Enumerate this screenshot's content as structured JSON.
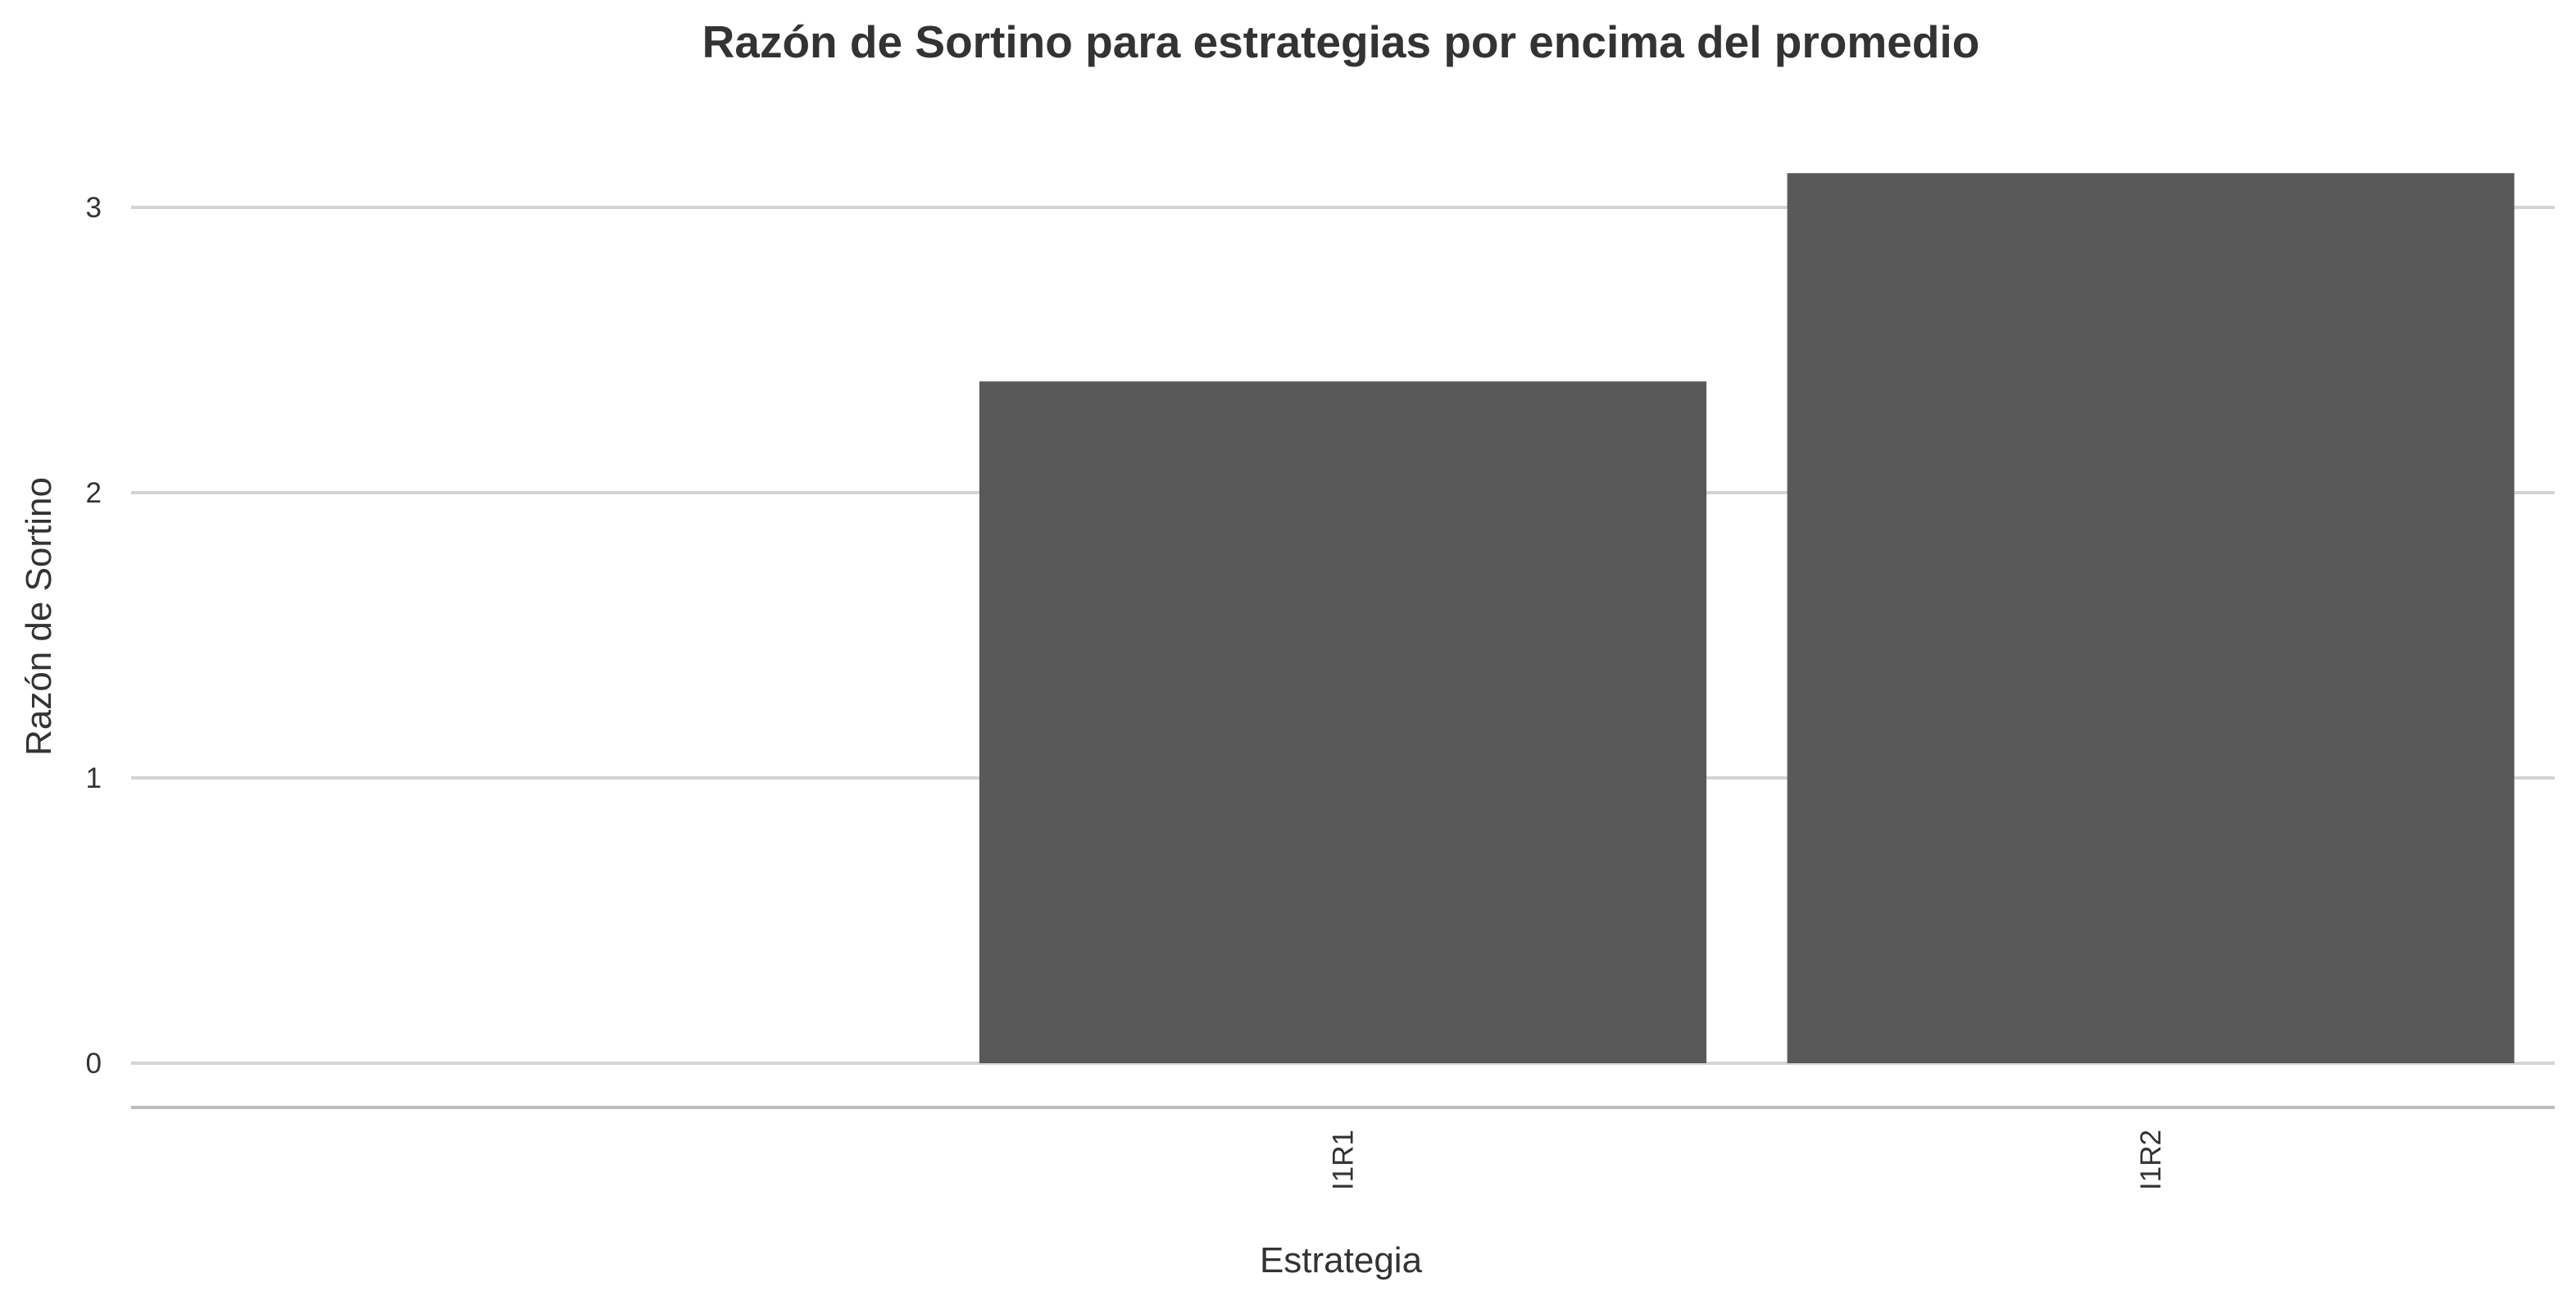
{
  "chart_data": {
    "type": "bar",
    "title": "Razón de Sortino para estrategias por encima del promedio",
    "xlabel": "Estrategia",
    "ylabel": "Razón de Sortino",
    "categories": [
      "",
      "I1R1",
      "I1R2"
    ],
    "values": [
      null,
      2.39,
      3.12
    ],
    "ylim": [
      -0.16,
      3.25
    ],
    "yticks": [
      0,
      1,
      2,
      3
    ],
    "grid": true,
    "legend": "none",
    "bar_color": "#595959"
  }
}
